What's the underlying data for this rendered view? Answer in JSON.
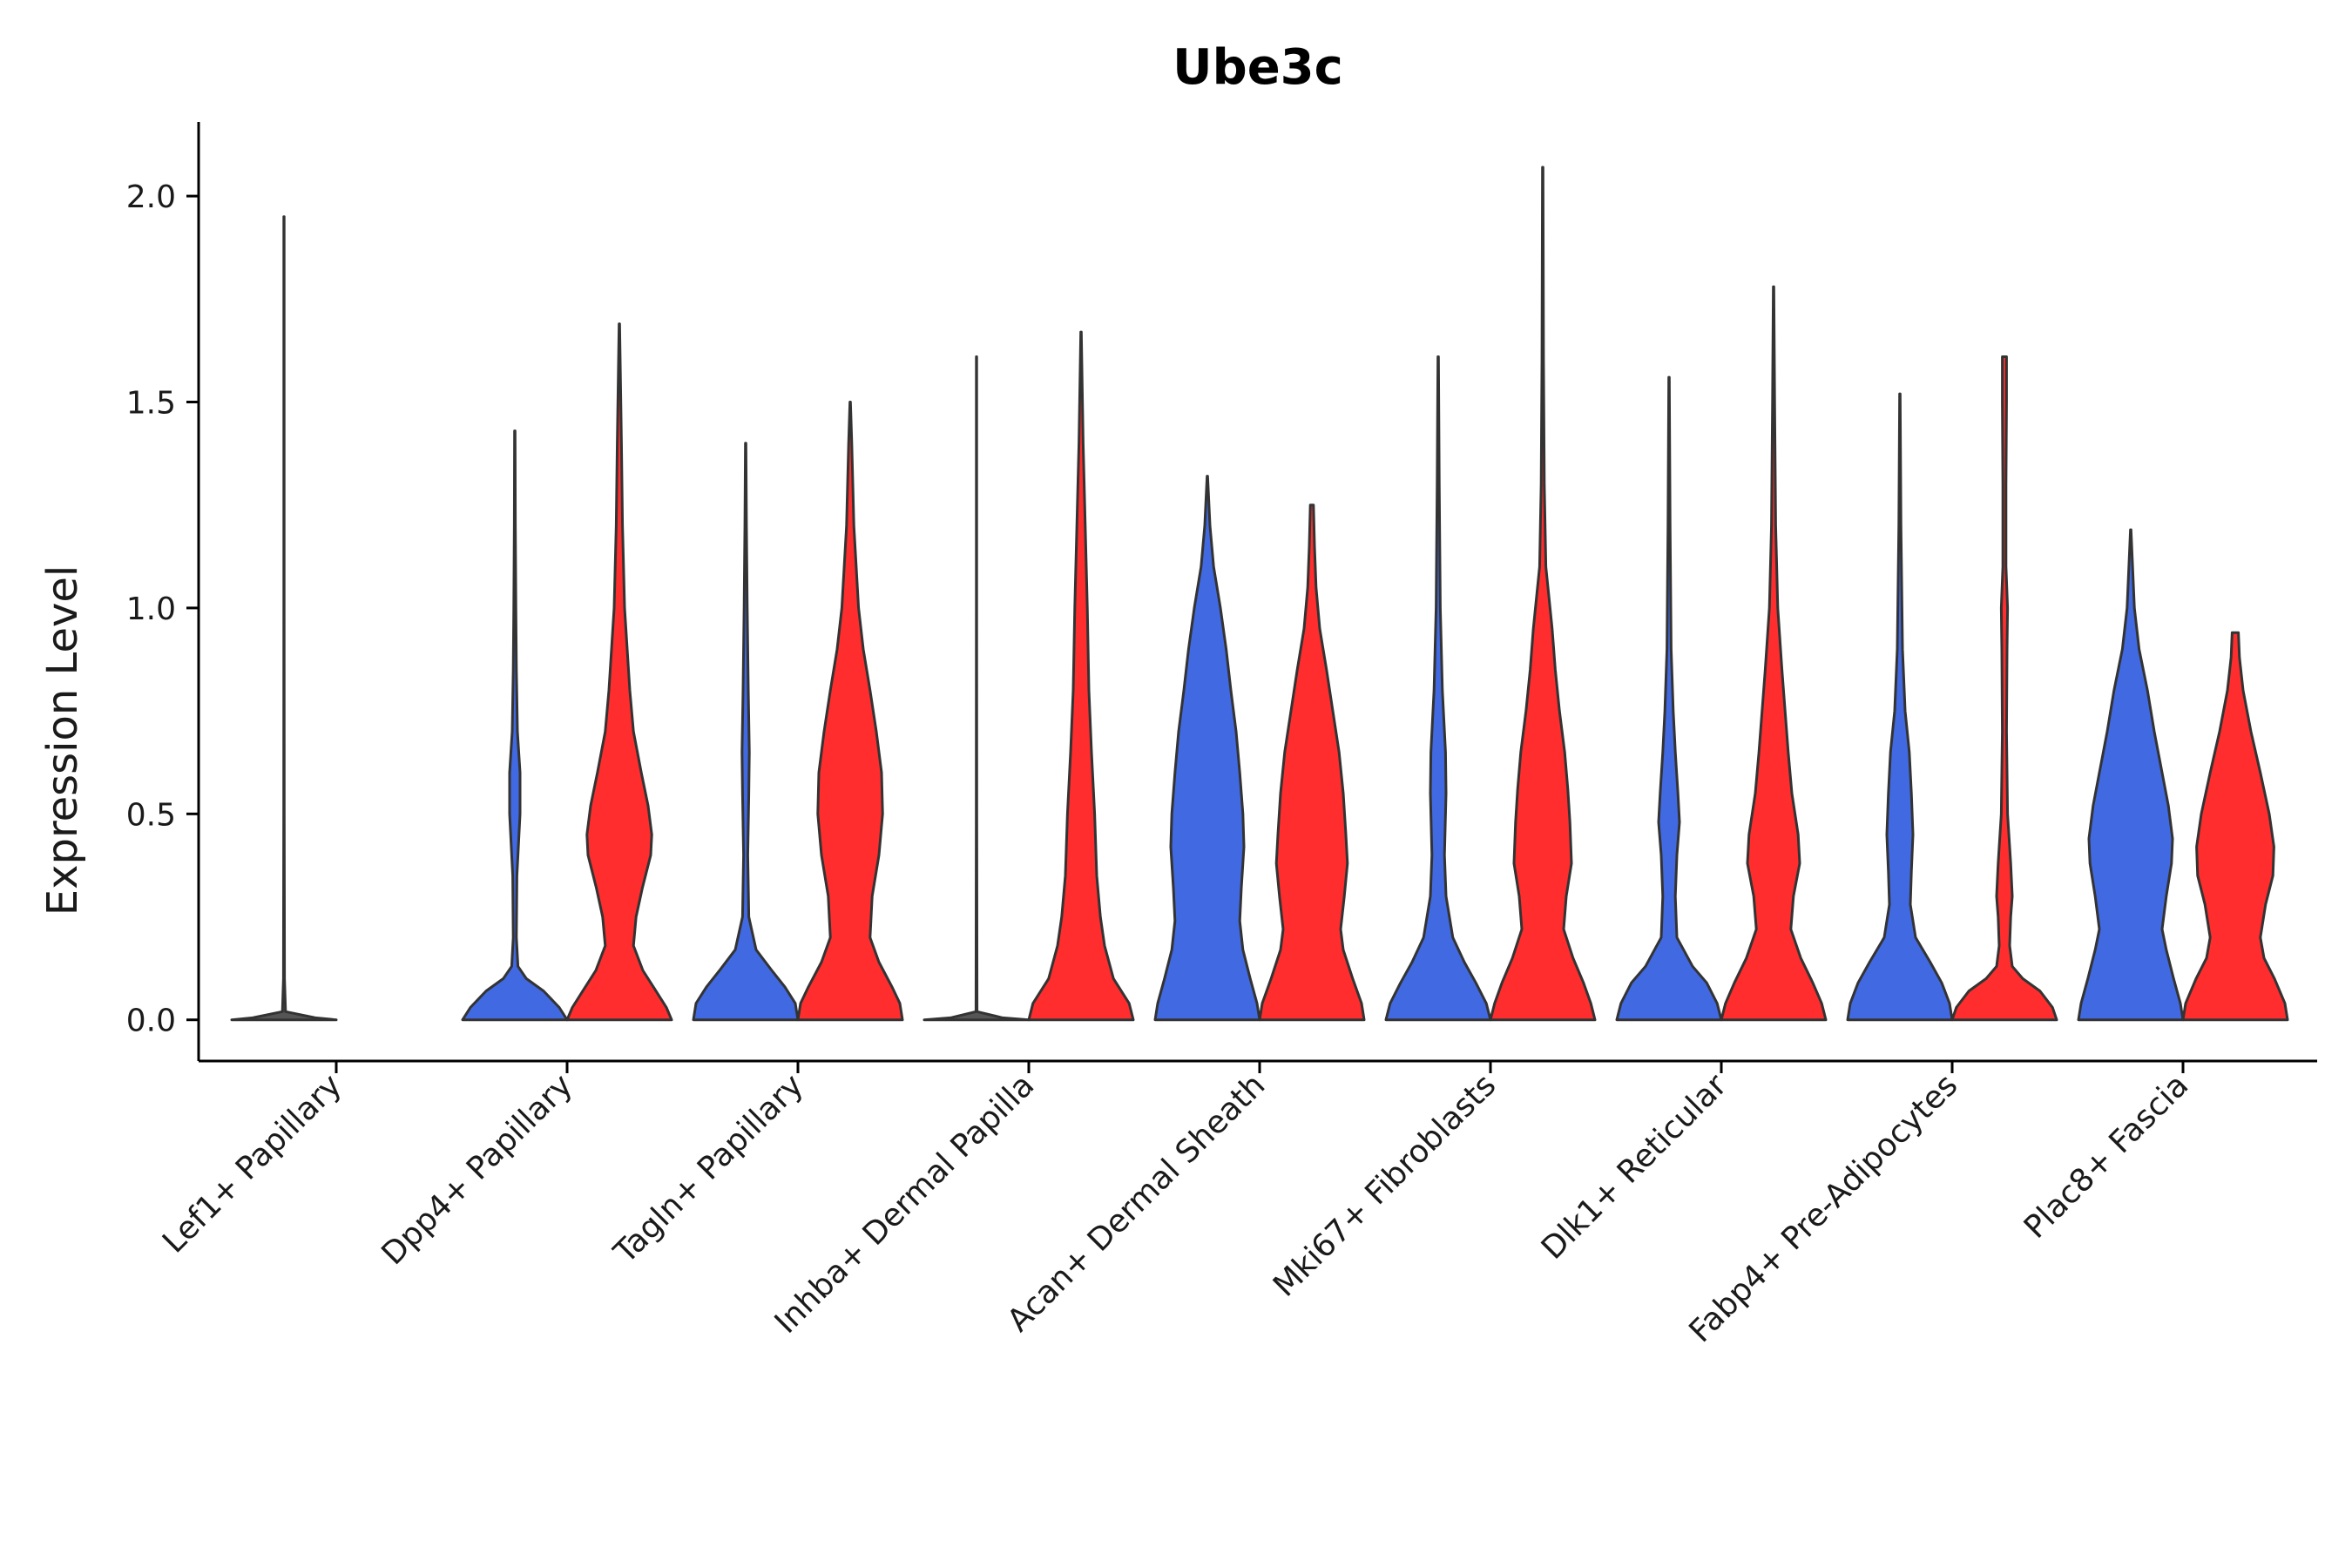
{
  "chart_data": {
    "type": "violin",
    "title": "Ube3c",
    "xlabel": "",
    "ylabel": "Expression Level",
    "ylim": [
      -0.1,
      2.18
    ],
    "yticks": [
      0.0,
      0.5,
      1.0,
      1.5,
      2.0
    ],
    "ytick_labels": [
      "0.0",
      "0.5",
      "1.0",
      "1.5",
      "2.0"
    ],
    "grid": false,
    "legend": "none",
    "colors": {
      "blue": "#4169E1",
      "red": "#FF2D2D",
      "outline": "#333333"
    },
    "categories": [
      "Lef1+ Papillary",
      "Dpp4+ Papillary",
      "Tagln+ Papillary",
      "Inhba+ Dermal Papilla",
      "Acan+ Dermal Sheath",
      "Mki67+ Fibroblasts",
      "Dlk1+ Reticular",
      "Fabp4+ Pre-Adipocytes",
      "Plac8+ Fascia"
    ],
    "violins": [
      {
        "category": "Lef1+ Papillary",
        "group": "blue",
        "max": 1.95,
        "profile": [
          [
            0,
            1
          ],
          [
            0.005,
            0.6
          ],
          [
            0.02,
            0.03
          ],
          [
            0.1,
            0.01
          ],
          [
            0.5,
            0.005
          ],
          [
            1.0,
            0.004
          ],
          [
            1.95,
            0.004
          ]
        ]
      },
      {
        "category": "Lef1+ Papillary",
        "group": "red",
        "max": 0.0,
        "profile": [
          [
            0,
            1
          ],
          [
            0.005,
            0
          ]
        ]
      },
      {
        "category": "Dpp4+ Papillary",
        "group": "blue",
        "max": 1.43,
        "profile": [
          [
            0,
            1
          ],
          [
            0.03,
            0.85
          ],
          [
            0.07,
            0.55
          ],
          [
            0.1,
            0.22
          ],
          [
            0.13,
            0.06
          ],
          [
            0.2,
            0.03
          ],
          [
            0.35,
            0.04
          ],
          [
            0.5,
            0.1
          ],
          [
            0.6,
            0.1
          ],
          [
            0.7,
            0.05
          ],
          [
            0.85,
            0.03
          ],
          [
            1.0,
            0.02
          ],
          [
            1.2,
            0.01
          ],
          [
            1.43,
            0.005
          ]
        ]
      },
      {
        "category": "Dpp4+ Papillary",
        "group": "red",
        "max": 1.69,
        "profile": [
          [
            0,
            1
          ],
          [
            0.03,
            0.9
          ],
          [
            0.07,
            0.7
          ],
          [
            0.12,
            0.45
          ],
          [
            0.18,
            0.27
          ],
          [
            0.25,
            0.32
          ],
          [
            0.32,
            0.44
          ],
          [
            0.4,
            0.6
          ],
          [
            0.45,
            0.62
          ],
          [
            0.52,
            0.55
          ],
          [
            0.6,
            0.42
          ],
          [
            0.7,
            0.27
          ],
          [
            0.8,
            0.2
          ],
          [
            0.9,
            0.15
          ],
          [
            1.0,
            0.1
          ],
          [
            1.2,
            0.06
          ],
          [
            1.4,
            0.04
          ],
          [
            1.69,
            0.005
          ]
        ]
      },
      {
        "category": "Tagln+ Papillary",
        "group": "blue",
        "max": 1.4,
        "profile": [
          [
            0,
            1
          ],
          [
            0.04,
            0.95
          ],
          [
            0.08,
            0.75
          ],
          [
            0.12,
            0.5
          ],
          [
            0.17,
            0.2
          ],
          [
            0.25,
            0.06
          ],
          [
            0.4,
            0.04
          ],
          [
            0.55,
            0.06
          ],
          [
            0.65,
            0.07
          ],
          [
            0.8,
            0.05
          ],
          [
            1.0,
            0.03
          ],
          [
            1.2,
            0.015
          ],
          [
            1.4,
            0.005
          ]
        ]
      },
      {
        "category": "Tagln+ Papillary",
        "group": "red",
        "max": 1.5,
        "profile": [
          [
            0,
            1
          ],
          [
            0.04,
            0.95
          ],
          [
            0.08,
            0.8
          ],
          [
            0.14,
            0.55
          ],
          [
            0.2,
            0.38
          ],
          [
            0.3,
            0.42
          ],
          [
            0.4,
            0.55
          ],
          [
            0.5,
            0.62
          ],
          [
            0.6,
            0.6
          ],
          [
            0.7,
            0.5
          ],
          [
            0.8,
            0.38
          ],
          [
            0.9,
            0.25
          ],
          [
            1.0,
            0.16
          ],
          [
            1.2,
            0.07
          ],
          [
            1.4,
            0.03
          ],
          [
            1.5,
            0.005
          ]
        ]
      },
      {
        "category": "Inhba+ Dermal Papilla",
        "group": "blue",
        "max": 1.61,
        "profile": [
          [
            0,
            1
          ],
          [
            0.005,
            0.5
          ],
          [
            0.02,
            0.01
          ],
          [
            0.5,
            0.005
          ],
          [
            1.0,
            0.004
          ],
          [
            1.61,
            0.004
          ]
        ]
      },
      {
        "category": "Inhba+ Dermal Papilla",
        "group": "red",
        "max": 1.67,
        "profile": [
          [
            0,
            1
          ],
          [
            0.04,
            0.92
          ],
          [
            0.1,
            0.62
          ],
          [
            0.18,
            0.45
          ],
          [
            0.25,
            0.37
          ],
          [
            0.35,
            0.3
          ],
          [
            0.5,
            0.26
          ],
          [
            0.65,
            0.2
          ],
          [
            0.8,
            0.15
          ],
          [
            1.0,
            0.12
          ],
          [
            1.2,
            0.08
          ],
          [
            1.4,
            0.04
          ],
          [
            1.67,
            0.005
          ]
        ]
      },
      {
        "category": "Acan+ Dermal Sheath",
        "group": "blue",
        "max": 1.32,
        "profile": [
          [
            0,
            1
          ],
          [
            0.04,
            0.95
          ],
          [
            0.1,
            0.82
          ],
          [
            0.17,
            0.68
          ],
          [
            0.24,
            0.62
          ],
          [
            0.32,
            0.65
          ],
          [
            0.42,
            0.7
          ],
          [
            0.5,
            0.68
          ],
          [
            0.6,
            0.62
          ],
          [
            0.7,
            0.55
          ],
          [
            0.8,
            0.45
          ],
          [
            0.9,
            0.36
          ],
          [
            1.0,
            0.25
          ],
          [
            1.1,
            0.12
          ],
          [
            1.2,
            0.05
          ],
          [
            1.32,
            0.005
          ]
        ]
      },
      {
        "category": "Acan+ Dermal Sheath",
        "group": "red",
        "max": 1.25,
        "profile": [
          [
            0,
            1
          ],
          [
            0.04,
            0.95
          ],
          [
            0.1,
            0.78
          ],
          [
            0.17,
            0.6
          ],
          [
            0.22,
            0.55
          ],
          [
            0.3,
            0.62
          ],
          [
            0.38,
            0.68
          ],
          [
            0.45,
            0.65
          ],
          [
            0.55,
            0.6
          ],
          [
            0.65,
            0.52
          ],
          [
            0.75,
            0.4
          ],
          [
            0.85,
            0.28
          ],
          [
            0.95,
            0.15
          ],
          [
            1.05,
            0.08
          ],
          [
            1.15,
            0.05
          ],
          [
            1.25,
            0.03
          ]
        ]
      },
      {
        "category": "Mki67+ Fibroblasts",
        "group": "blue",
        "max": 1.61,
        "profile": [
          [
            0,
            1
          ],
          [
            0.04,
            0.92
          ],
          [
            0.09,
            0.72
          ],
          [
            0.14,
            0.5
          ],
          [
            0.2,
            0.28
          ],
          [
            0.3,
            0.15
          ],
          [
            0.4,
            0.12
          ],
          [
            0.55,
            0.15
          ],
          [
            0.65,
            0.14
          ],
          [
            0.8,
            0.08
          ],
          [
            1.0,
            0.04
          ],
          [
            1.3,
            0.02
          ],
          [
            1.61,
            0.005
          ]
        ]
      },
      {
        "category": "Mki67+ Fibroblasts",
        "group": "red",
        "max": 2.07,
        "profile": [
          [
            0,
            1
          ],
          [
            0.04,
            0.92
          ],
          [
            0.09,
            0.78
          ],
          [
            0.15,
            0.58
          ],
          [
            0.22,
            0.4
          ],
          [
            0.3,
            0.45
          ],
          [
            0.38,
            0.55
          ],
          [
            0.48,
            0.52
          ],
          [
            0.56,
            0.48
          ],
          [
            0.65,
            0.42
          ],
          [
            0.75,
            0.32
          ],
          [
            0.85,
            0.24
          ],
          [
            0.95,
            0.18
          ],
          [
            1.1,
            0.06
          ],
          [
            1.3,
            0.03
          ],
          [
            1.6,
            0.015
          ],
          [
            2.07,
            0.005
          ]
        ]
      },
      {
        "category": "Dlk1+ Reticular",
        "group": "blue",
        "max": 1.56,
        "profile": [
          [
            0,
            1
          ],
          [
            0.04,
            0.92
          ],
          [
            0.09,
            0.72
          ],
          [
            0.13,
            0.45
          ],
          [
            0.2,
            0.15
          ],
          [
            0.3,
            0.12
          ],
          [
            0.4,
            0.15
          ],
          [
            0.48,
            0.2
          ],
          [
            0.55,
            0.17
          ],
          [
            0.65,
            0.12
          ],
          [
            0.75,
            0.08
          ],
          [
            0.9,
            0.04
          ],
          [
            1.2,
            0.02
          ],
          [
            1.56,
            0.005
          ]
        ]
      },
      {
        "category": "Dlk1+ Reticular",
        "group": "red",
        "max": 1.78,
        "profile": [
          [
            0,
            1
          ],
          [
            0.04,
            0.92
          ],
          [
            0.09,
            0.75
          ],
          [
            0.15,
            0.52
          ],
          [
            0.22,
            0.33
          ],
          [
            0.3,
            0.38
          ],
          [
            0.38,
            0.5
          ],
          [
            0.45,
            0.47
          ],
          [
            0.55,
            0.35
          ],
          [
            0.65,
            0.28
          ],
          [
            0.75,
            0.22
          ],
          [
            0.85,
            0.16
          ],
          [
            1.0,
            0.08
          ],
          [
            1.2,
            0.04
          ],
          [
            1.5,
            0.02
          ],
          [
            1.78,
            0.005
          ]
        ]
      },
      {
        "category": "Fabp4+ Pre-Adipocytes",
        "group": "blue",
        "max": 1.52,
        "profile": [
          [
            0,
            1
          ],
          [
            0.04,
            0.95
          ],
          [
            0.09,
            0.8
          ],
          [
            0.14,
            0.58
          ],
          [
            0.2,
            0.3
          ],
          [
            0.28,
            0.2
          ],
          [
            0.36,
            0.22
          ],
          [
            0.45,
            0.25
          ],
          [
            0.55,
            0.22
          ],
          [
            0.65,
            0.18
          ],
          [
            0.75,
            0.1
          ],
          [
            0.9,
            0.05
          ],
          [
            1.2,
            0.02
          ],
          [
            1.52,
            0.005
          ]
        ]
      },
      {
        "category": "Fabp4+ Pre-Adipocytes",
        "group": "red",
        "max": 1.61,
        "profile": [
          [
            0,
            1
          ],
          [
            0.03,
            0.92
          ],
          [
            0.07,
            0.68
          ],
          [
            0.1,
            0.35
          ],
          [
            0.13,
            0.15
          ],
          [
            0.18,
            0.1
          ],
          [
            0.25,
            0.12
          ],
          [
            0.3,
            0.15
          ],
          [
            0.38,
            0.12
          ],
          [
            0.5,
            0.06
          ],
          [
            0.7,
            0.04
          ],
          [
            0.9,
            0.05
          ],
          [
            1.0,
            0.06
          ],
          [
            1.1,
            0.03
          ],
          [
            1.3,
            0.03
          ],
          [
            1.5,
            0.04
          ],
          [
            1.61,
            0.04
          ]
        ]
      },
      {
        "category": "Plac8+ Fascia",
        "group": "blue",
        "max": 1.19,
        "profile": [
          [
            0,
            1
          ],
          [
            0.04,
            0.95
          ],
          [
            0.1,
            0.82
          ],
          [
            0.17,
            0.68
          ],
          [
            0.22,
            0.6
          ],
          [
            0.3,
            0.68
          ],
          [
            0.38,
            0.78
          ],
          [
            0.44,
            0.8
          ],
          [
            0.52,
            0.72
          ],
          [
            0.6,
            0.6
          ],
          [
            0.7,
            0.45
          ],
          [
            0.8,
            0.32
          ],
          [
            0.9,
            0.16
          ],
          [
            1.0,
            0.07
          ],
          [
            1.19,
            0.005
          ]
        ]
      },
      {
        "category": "Plac8+ Fascia",
        "group": "red",
        "max": 0.94,
        "profile": [
          [
            0,
            1
          ],
          [
            0.04,
            0.95
          ],
          [
            0.1,
            0.75
          ],
          [
            0.15,
            0.55
          ],
          [
            0.2,
            0.48
          ],
          [
            0.28,
            0.58
          ],
          [
            0.35,
            0.72
          ],
          [
            0.42,
            0.74
          ],
          [
            0.5,
            0.65
          ],
          [
            0.6,
            0.48
          ],
          [
            0.7,
            0.3
          ],
          [
            0.8,
            0.15
          ],
          [
            0.88,
            0.08
          ],
          [
            0.94,
            0.06
          ]
        ]
      }
    ]
  }
}
